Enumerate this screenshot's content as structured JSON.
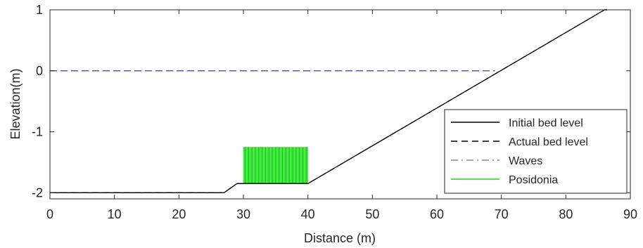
{
  "chart_data": {
    "type": "line",
    "xlabel": "Distance (m)",
    "ylabel": "Elevation(m)",
    "xlim": [
      0,
      90
    ],
    "ylim": [
      -2.1,
      1.0
    ],
    "xticks": [
      0,
      10,
      20,
      30,
      40,
      50,
      60,
      70,
      80,
      90
    ],
    "yticks": [
      1,
      0,
      -1,
      -2
    ],
    "xtick_labels": [
      "0",
      "10",
      "20",
      "30",
      "40",
      "50",
      "60",
      "70",
      "80",
      "90"
    ],
    "ytick_labels": [
      "1",
      "0",
      "-1",
      "-2"
    ],
    "grid": false,
    "legend_position": "bottom-right",
    "series": [
      {
        "name": "Initial bed level",
        "style": "solid",
        "color": "#000000",
        "x": [
          0,
          27,
          29,
          40,
          86,
          86.4
        ],
        "y": [
          -2.0,
          -2.0,
          -1.85,
          -1.85,
          1.0,
          1.0
        ]
      },
      {
        "name": "Actual bed level",
        "style": "dashed",
        "color": "#000000",
        "x": [
          0,
          27,
          29,
          40,
          86,
          86.4
        ],
        "y": [
          -2.0,
          -2.0,
          -1.85,
          -1.85,
          1.0,
          1.0
        ]
      },
      {
        "name": "Waves",
        "style": "dash-dot",
        "color": "#5a5aa6",
        "x": [
          0,
          69
        ],
        "y": [
          0,
          0
        ]
      },
      {
        "name": "Posidonia",
        "style": "solid",
        "color": "#22d622",
        "x_range": [
          30,
          40
        ],
        "y_range": [
          -1.85,
          -1.25
        ]
      }
    ]
  }
}
